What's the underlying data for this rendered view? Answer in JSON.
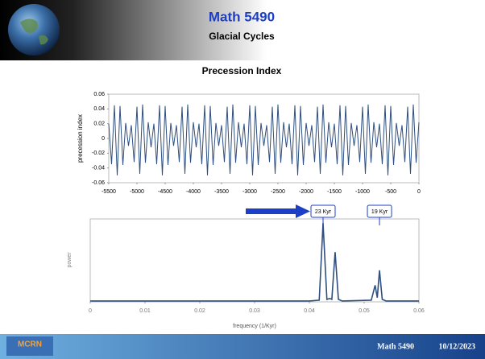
{
  "header": {
    "title": "Math 5490",
    "subtitle": "Glacial Cycles"
  },
  "footer": {
    "logo": "MCRN",
    "course": "Math 5490",
    "date": "10/12/2023"
  },
  "chart_data": [
    {
      "type": "line",
      "title": "Precession Index",
      "y_label": "precession index",
      "color": "#2e4f7f",
      "xlim": [
        -5500,
        0
      ],
      "xticks": [
        -5500,
        -5000,
        -4500,
        -4000,
        -3500,
        -3000,
        -2500,
        -2000,
        -1500,
        -1000,
        -500,
        0
      ],
      "ylim": [
        -0.06,
        0.06
      ],
      "yticks": [
        -0.06,
        -0.04,
        -0.02,
        0,
        0.02,
        0.04,
        0.06
      ],
      "x": [
        -5500,
        -5450,
        -5400,
        -5350,
        -5300,
        -5250,
        -5200,
        -5150,
        -5100,
        -5050,
        -5000,
        -4950,
        -4900,
        -4850,
        -4800,
        -4750,
        -4700,
        -4650,
        -4600,
        -4550,
        -4500,
        -4450,
        -4400,
        -4350,
        -4300,
        -4250,
        -4200,
        -4150,
        -4100,
        -4050,
        -4000,
        -3950,
        -3900,
        -3850,
        -3800,
        -3750,
        -3700,
        -3650,
        -3600,
        -3550,
        -3500,
        -3450,
        -3400,
        -3350,
        -3300,
        -3250,
        -3200,
        -3150,
        -3100,
        -3050,
        -3000,
        -2950,
        -2900,
        -2850,
        -2800,
        -2750,
        -2700,
        -2650,
        -2600,
        -2550,
        -2500,
        -2450,
        -2400,
        -2350,
        -2300,
        -2250,
        -2200,
        -2150,
        -2100,
        -2050,
        -2000,
        -1950,
        -1900,
        -1850,
        -1800,
        -1750,
        -1700,
        -1650,
        -1600,
        -1550,
        -1500,
        -1450,
        -1400,
        -1350,
        -1300,
        -1250,
        -1200,
        -1150,
        -1100,
        -1050,
        -1000,
        -950,
        -900,
        -850,
        -800,
        -750,
        -700,
        -650,
        -600,
        -550,
        -500,
        -450,
        -400,
        -350,
        -300,
        -250,
        -200,
        -150,
        -100,
        -50,
        0
      ],
      "values": [
        0.02,
        -0.035,
        0.045,
        -0.05,
        0.044,
        -0.036,
        0.021,
        -0.01,
        0.018,
        -0.032,
        0.043,
        -0.048,
        0.046,
        -0.033,
        0.022,
        -0.012,
        0.02,
        -0.035,
        0.045,
        -0.05,
        0.044,
        -0.036,
        0.021,
        -0.01,
        0.018,
        -0.032,
        0.043,
        -0.048,
        0.046,
        -0.033,
        0.022,
        -0.012,
        0.02,
        -0.035,
        0.045,
        -0.05,
        0.044,
        -0.036,
        0.021,
        -0.01,
        0.018,
        -0.032,
        0.043,
        -0.048,
        0.046,
        -0.033,
        0.022,
        -0.012,
        0.02,
        -0.035,
        0.045,
        -0.05,
        0.044,
        -0.036,
        0.021,
        -0.01,
        0.018,
        -0.032,
        0.043,
        -0.048,
        0.046,
        -0.033,
        0.022,
        -0.012,
        0.02,
        -0.035,
        0.045,
        -0.05,
        0.044,
        -0.036,
        0.021,
        -0.01,
        0.018,
        -0.032,
        0.043,
        -0.048,
        0.046,
        -0.033,
        0.022,
        -0.012,
        0.02,
        -0.035,
        0.045,
        -0.05,
        0.044,
        -0.036,
        0.021,
        -0.01,
        0.018,
        -0.032,
        0.043,
        -0.048,
        0.046,
        -0.033,
        0.022,
        -0.012,
        0.02,
        -0.035,
        0.045,
        -0.05,
        0.044,
        -0.036,
        0.021,
        -0.01,
        0.018,
        -0.032,
        0.043,
        -0.048,
        0.046,
        -0.033,
        0.022
      ]
    },
    {
      "type": "line",
      "x_label": "frequency (1/Kyr)",
      "y_label": "power",
      "color": "#2e4f7f",
      "xlim": [
        0,
        0.06
      ],
      "xticks": [
        0,
        0.01,
        0.02,
        0.03,
        0.04,
        0.05,
        0.06
      ],
      "ylim": [
        0,
        1
      ],
      "x": [
        0,
        0.04,
        0.0418,
        0.0425,
        0.0432,
        0.0437,
        0.0441,
        0.0447,
        0.0453,
        0.046,
        0.0513,
        0.052,
        0.0524,
        0.0528,
        0.0533,
        0.054,
        0.06
      ],
      "values": [
        0.01,
        0.01,
        0.02,
        0.95,
        0.03,
        0.04,
        0.03,
        0.6,
        0.03,
        0.01,
        0.02,
        0.2,
        0.05,
        0.38,
        0.03,
        0.01,
        0.01
      ],
      "annotations": [
        {
          "text": "23 Kyr",
          "x": 0.0425
        },
        {
          "text": "19 Kyr",
          "x": 0.0528
        }
      ]
    }
  ]
}
